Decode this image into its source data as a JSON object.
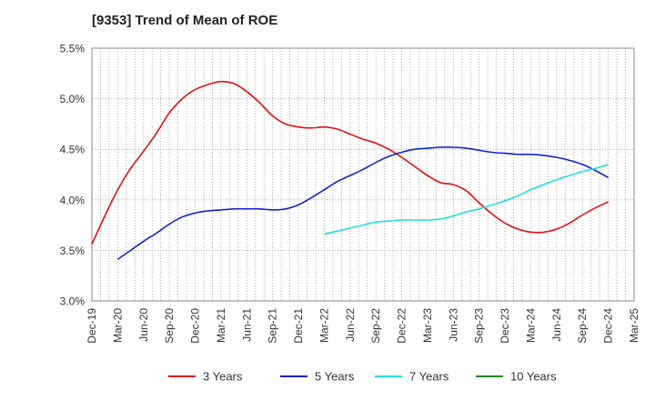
{
  "chart_data": {
    "type": "line",
    "title": "[9353]  Trend of Mean of ROE",
    "xlabel": "",
    "ylabel": "",
    "ylim": [
      3.0,
      5.5
    ],
    "y_ticks": [
      "3.0%",
      "3.5%",
      "4.0%",
      "4.5%",
      "5.0%",
      "5.5%"
    ],
    "y_tick_values": [
      3.0,
      3.5,
      4.0,
      4.5,
      5.0,
      5.5
    ],
    "x_ticks": [
      "Dec-19",
      "Mar-20",
      "Jun-20",
      "Sep-20",
      "Dec-20",
      "Mar-21",
      "Jun-21",
      "Sep-21",
      "Dec-21",
      "Mar-22",
      "Jun-22",
      "Sep-22",
      "Dec-22",
      "Mar-23",
      "Jun-23",
      "Sep-23",
      "Dec-23",
      "Mar-24",
      "Jun-24",
      "Sep-24",
      "Dec-24",
      "Mar-25"
    ],
    "grid": true,
    "legend_position": "bottom",
    "series": [
      {
        "name": "3 Years",
        "color": "#dd1111",
        "values": [
          3.56,
          3.84,
          4.1,
          4.31,
          4.48,
          4.66,
          4.86,
          5.0,
          5.09,
          5.14,
          5.17,
          5.15,
          5.07,
          4.96,
          4.83,
          4.75,
          4.72,
          4.71,
          4.72,
          4.7,
          4.65,
          4.6,
          4.56,
          4.5,
          4.42,
          4.33,
          4.24,
          4.17,
          4.15,
          4.09,
          3.97,
          3.86,
          3.77,
          3.71,
          3.68,
          3.68,
          3.71,
          3.77,
          3.85,
          3.92,
          3.98
        ]
      },
      {
        "name": "5 Years",
        "color": "#1122cc",
        "values": [
          null,
          null,
          3.41,
          3.5,
          3.59,
          3.67,
          3.76,
          3.83,
          3.87,
          3.89,
          3.9,
          3.91,
          3.91,
          3.91,
          3.9,
          3.91,
          3.95,
          4.02,
          4.1,
          4.18,
          4.24,
          4.3,
          4.37,
          4.43,
          4.47,
          4.5,
          4.51,
          4.52,
          4.52,
          4.51,
          4.49,
          4.47,
          4.46,
          4.45,
          4.45,
          4.44,
          4.42,
          4.39,
          4.35,
          4.29,
          4.22
        ]
      },
      {
        "name": "7 Years",
        "color": "#22dddd",
        "values": [
          null,
          null,
          null,
          null,
          null,
          null,
          null,
          null,
          null,
          null,
          null,
          null,
          null,
          null,
          null,
          null,
          null,
          null,
          3.66,
          3.69,
          3.72,
          3.75,
          3.78,
          3.79,
          3.8,
          3.8,
          3.8,
          3.81,
          3.84,
          3.88,
          3.91,
          3.95,
          3.99,
          4.04,
          4.1,
          4.15,
          4.2,
          4.24,
          4.28,
          4.31,
          4.35
        ]
      },
      {
        "name": "10 Years",
        "color": "#228822",
        "values": []
      }
    ]
  }
}
